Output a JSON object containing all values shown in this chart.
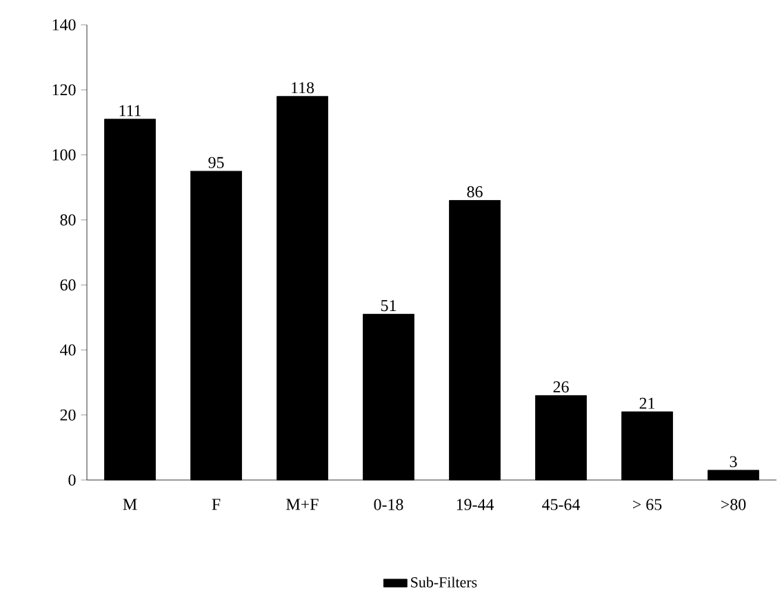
{
  "chart_data": {
    "type": "bar",
    "categories": [
      "M",
      "F",
      "M+F",
      "0-18",
      "19-44",
      "45-64",
      "> 65",
      ">80"
    ],
    "series": [
      {
        "name": "Sub-Filters",
        "color": "#000000",
        "values": [
          111,
          95,
          118,
          51,
          86,
          26,
          21,
          3
        ]
      }
    ],
    "ylim": [
      0,
      140
    ],
    "yticks": [
      0,
      20,
      40,
      60,
      80,
      100,
      120,
      140
    ],
    "data_labels": true,
    "legend": "bottom",
    "grid": false
  }
}
